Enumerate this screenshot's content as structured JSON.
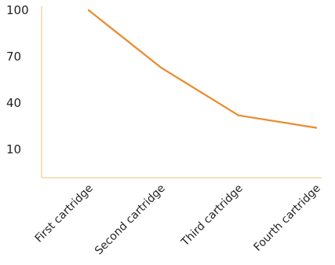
{
  "chart_data": {
    "type": "line",
    "categories": [
      "First cartridge",
      "Second cartridge",
      "Third cartridge",
      "Fourth cartridge"
    ],
    "series": [
      {
        "values": [
          100,
          63,
          32,
          24
        ]
      }
    ],
    "yticks": [
      100,
      70,
      40,
      10
    ],
    "ylim": [
      -8,
      100
    ],
    "grid": false,
    "colors": {
      "line": "#ec8a2c",
      "axis": "#f3d9a0"
    }
  }
}
